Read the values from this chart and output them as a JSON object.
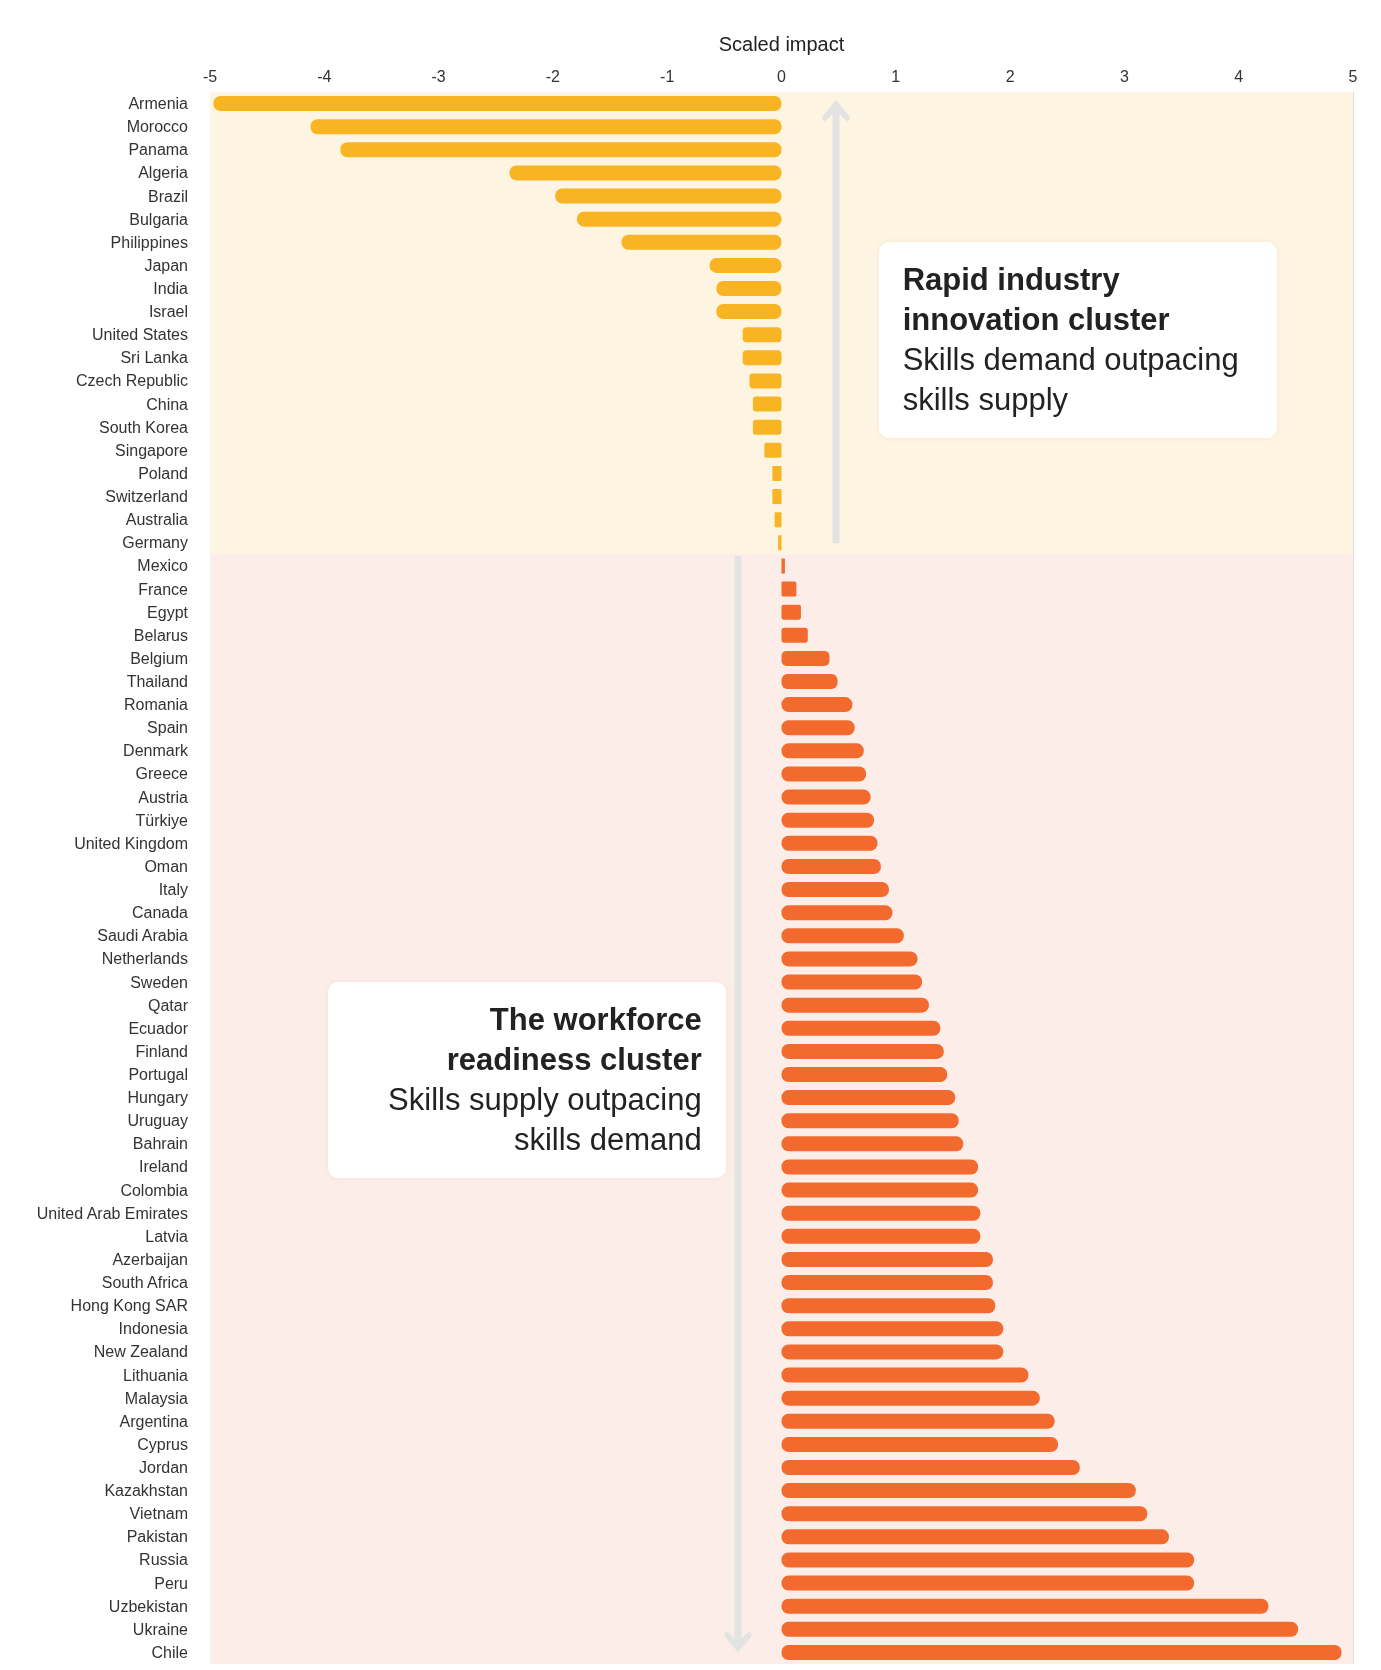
{
  "chart_data": {
    "type": "bar",
    "orientation": "horizontal",
    "xlabel": "Scaled impact",
    "categories": [
      "Armenia",
      "Morocco",
      "Panama",
      "Algeria",
      "Brazil",
      "Bulgaria",
      "Philippines",
      "Japan",
      "India",
      "Israel",
      "United States",
      "Sri Lanka",
      "Czech Republic",
      "China",
      "South Korea",
      "Singapore",
      "Poland",
      "Switzerland",
      "Australia",
      "Germany",
      "Mexico",
      "France",
      "Egypt",
      "Belarus",
      "Belgium",
      "Thailand",
      "Romania",
      "Spain",
      "Denmark",
      "Greece",
      "Austria",
      "Türkiye",
      "United Kingdom",
      "Oman",
      "Italy",
      "Canada",
      "Saudi Arabia",
      "Netherlands",
      "Sweden",
      "Qatar",
      "Ecuador",
      "Finland",
      "Portugal",
      "Hungary",
      "Uruguay",
      "Bahrain",
      "Ireland",
      "Colombia",
      "United Arab Emirates",
      "Latvia",
      "Azerbaijan",
      "South Africa",
      "Hong Kong SAR",
      "Indonesia",
      "New Zealand",
      "Lithuania",
      "Malaysia",
      "Argentina",
      "Cyprus",
      "Jordan",
      "Kazakhstan",
      "Vietnam",
      "Pakistan",
      "Russia",
      "Peru",
      "Uzbekistan",
      "Ukraine",
      "Chile"
    ],
    "values": [
      -4.97,
      -4.12,
      -3.86,
      -2.38,
      -1.98,
      -1.79,
      -1.4,
      -0.63,
      -0.57,
      -0.57,
      -0.34,
      -0.34,
      -0.28,
      -0.25,
      -0.25,
      -0.15,
      -0.08,
      -0.08,
      -0.06,
      -0.03,
      0.03,
      0.13,
      0.17,
      0.23,
      0.42,
      0.49,
      0.62,
      0.64,
      0.72,
      0.74,
      0.78,
      0.81,
      0.84,
      0.87,
      0.94,
      0.97,
      1.07,
      1.19,
      1.23,
      1.29,
      1.39,
      1.42,
      1.45,
      1.52,
      1.55,
      1.59,
      1.72,
      1.72,
      1.74,
      1.74,
      1.85,
      1.85,
      1.87,
      1.94,
      1.94,
      2.16,
      2.26,
      2.39,
      2.42,
      2.61,
      3.1,
      3.2,
      3.39,
      3.61,
      3.61,
      4.26,
      4.52,
      4.9
    ],
    "colors": [
      "#f9b424",
      "#f9b424",
      "#f9b424",
      "#f9b424",
      "#f9b424",
      "#f9b424",
      "#f9b424",
      "#f9b424",
      "#f9b424",
      "#f9b424",
      "#f9b424",
      "#f9b424",
      "#f9b424",
      "#f9b424",
      "#f9b424",
      "#f9b424",
      "#f9b424",
      "#f9b424",
      "#f9b424",
      "#f9b424",
      "#f26a2e",
      "#f26a2e",
      "#f26a2e",
      "#f26a2e",
      "#f26a2e",
      "#f26a2e",
      "#f26a2e",
      "#f26a2e",
      "#f26a2e",
      "#f26a2e",
      "#f26a2e",
      "#f26a2e",
      "#f26a2e",
      "#f26a2e",
      "#f26a2e",
      "#f26a2e",
      "#f26a2e",
      "#f26a2e",
      "#f26a2e",
      "#f26a2e",
      "#f26a2e",
      "#f26a2e",
      "#f26a2e",
      "#f26a2e",
      "#f26a2e",
      "#f26a2e",
      "#f26a2e",
      "#f26a2e",
      "#f26a2e",
      "#f26a2e",
      "#f26a2e",
      "#f26a2e",
      "#f26a2e",
      "#f26a2e",
      "#f26a2e",
      "#f26a2e",
      "#f26a2e",
      "#f26a2e",
      "#f26a2e",
      "#f26a2e",
      "#f26a2e",
      "#f26a2e",
      "#f26a2e",
      "#f26a2e",
      "#f26a2e",
      "#f26a2e",
      "#f26a2e",
      "#f26a2e"
    ],
    "xlim": [
      -5,
      5
    ],
    "xticks": [
      -5,
      -4,
      -3,
      -2,
      -1,
      0,
      1,
      2,
      3,
      4,
      5
    ],
    "grid": "x",
    "bands": [
      {
        "axis": "y",
        "from": "Armenia",
        "to": "Germany",
        "color": "#fdf5e1"
      },
      {
        "axis": "y",
        "from": "Mexico",
        "to": "Chile",
        "color": "#fdede8"
      }
    ],
    "annotations": [
      "Rapid industry innovation cluster",
      "Skills demand outpacing skills supply",
      "The workforce readiness cluster",
      "Skills supply outpacing skills demand"
    ]
  }
}
